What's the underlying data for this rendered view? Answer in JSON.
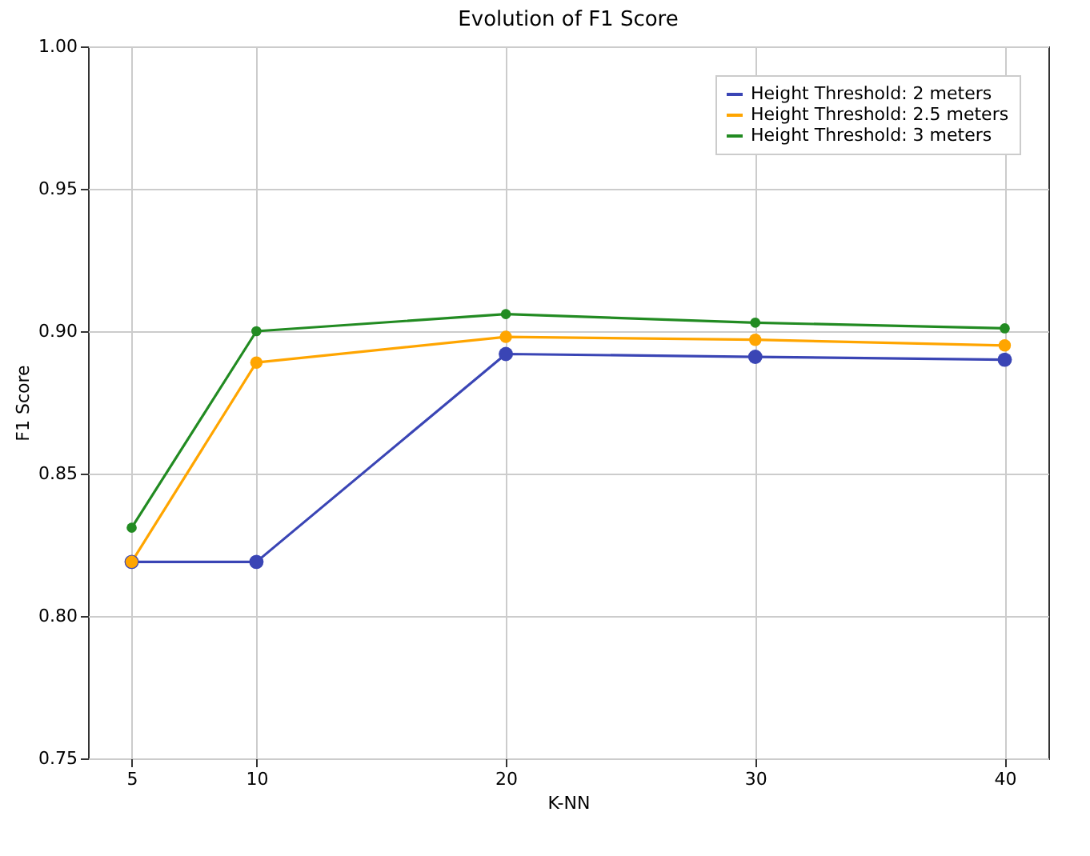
{
  "chart_data": {
    "type": "line",
    "title": "Evolution of F1 Score",
    "xlabel": "K-NN",
    "ylabel": "F1 Score",
    "x": [
      5,
      10,
      20,
      30,
      40
    ],
    "series": [
      {
        "name": "Height Threshold: 2 meters",
        "color": "#3a45b5",
        "values": [
          0.819,
          0.819,
          0.892,
          0.891,
          0.89
        ]
      },
      {
        "name": "Height Threshold: 2.5 meters",
        "color": "#ffa500",
        "values": [
          0.819,
          0.889,
          0.898,
          0.897,
          0.895
        ]
      },
      {
        "name": "Height Threshold: 3 meters",
        "color": "#228b22",
        "values": [
          0.831,
          0.9,
          0.906,
          0.903,
          0.901
        ]
      }
    ],
    "xlim": [
      3.25,
      41.75
    ],
    "xticks": [
      5,
      10,
      20,
      30,
      40
    ],
    "ylim": [
      0.75,
      1.0
    ],
    "yticks": [
      {
        "value": 0.75,
        "label": "0.75"
      },
      {
        "value": 0.8,
        "label": "0.80"
      },
      {
        "value": 0.85,
        "label": "0.85"
      },
      {
        "value": 0.9,
        "label": "0.90"
      },
      {
        "value": 0.95,
        "label": "0.95"
      },
      {
        "value": 1.0,
        "label": "1.00"
      }
    ],
    "grid": true,
    "legend": "top right",
    "marker": "circle",
    "line_style": "solid"
  }
}
